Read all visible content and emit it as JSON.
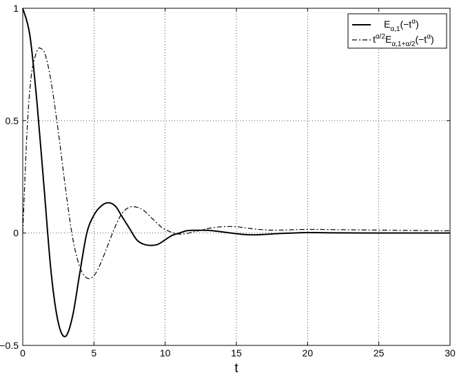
{
  "chart_data": {
    "type": "line",
    "title": "",
    "xlabel": "t",
    "ylabel": "",
    "xlim": [
      0,
      30
    ],
    "ylim": [
      -0.5,
      1
    ],
    "grid": true,
    "grid_style": "dotted",
    "legend_position": "top-right",
    "x_ticks": [
      "0",
      "5",
      "10",
      "15",
      "20",
      "25",
      "30"
    ],
    "y_ticks": [
      "-0.5",
      "0",
      "0.5",
      "1"
    ],
    "legend": [
      {
        "base": "E",
        "sub": "α,1",
        "arg_open": "(−t",
        "arg_sup": "α",
        "arg_close": ")",
        "style": "solid"
      },
      {
        "pre": "t",
        "pre_sup": "α/2",
        "base": "E",
        "sub": "α,1+α/2",
        "arg_open": "(−t",
        "arg_sup": "α",
        "arg_close": ")",
        "style": "dashdot"
      }
    ],
    "series": [
      {
        "style": "solid",
        "color": "#000000",
        "x": [
          0,
          0.5,
          1,
          1.5,
          2,
          2.5,
          3,
          3.5,
          4,
          4.5,
          5,
          5.5,
          6,
          6.5,
          7,
          7.5,
          8,
          8.5,
          9,
          9.5,
          10,
          10.5,
          11,
          11.5,
          12,
          13,
          14,
          15,
          16,
          17,
          18,
          19,
          20,
          22,
          24,
          26,
          28,
          30
        ],
        "y": [
          1.0,
          0.88,
          0.58,
          0.2,
          -0.18,
          -0.4,
          -0.46,
          -0.37,
          -0.18,
          0.0,
          0.08,
          0.12,
          0.135,
          0.12,
          0.07,
          0.02,
          -0.03,
          -0.05,
          -0.055,
          -0.05,
          -0.03,
          -0.01,
          0.0,
          0.01,
          0.012,
          0.012,
          0.005,
          -0.003,
          -0.008,
          -0.006,
          -0.002,
          0.0,
          0.002,
          0.001,
          0.0,
          0.0,
          0.0,
          0.0
        ]
      },
      {
        "style": "dashdot",
        "color": "#000000",
        "x": [
          0,
          0.3,
          0.6,
          1.0,
          1.3,
          1.6,
          2.0,
          2.5,
          3.0,
          3.5,
          4.0,
          4.5,
          5.0,
          5.5,
          6.0,
          6.5,
          7.0,
          7.5,
          8.0,
          8.5,
          9.0,
          9.5,
          10,
          11,
          12,
          13,
          14,
          15,
          16,
          17,
          18,
          20,
          22,
          25,
          30
        ],
        "y": [
          0.0,
          0.45,
          0.7,
          0.81,
          0.82,
          0.79,
          0.67,
          0.45,
          0.2,
          -0.02,
          -0.15,
          -0.2,
          -0.19,
          -0.13,
          -0.05,
          0.03,
          0.09,
          0.115,
          0.115,
          0.1,
          0.07,
          0.04,
          0.015,
          -0.005,
          0.005,
          0.02,
          0.028,
          0.028,
          0.02,
          0.014,
          0.013,
          0.016,
          0.015,
          0.013,
          0.01
        ]
      }
    ]
  }
}
